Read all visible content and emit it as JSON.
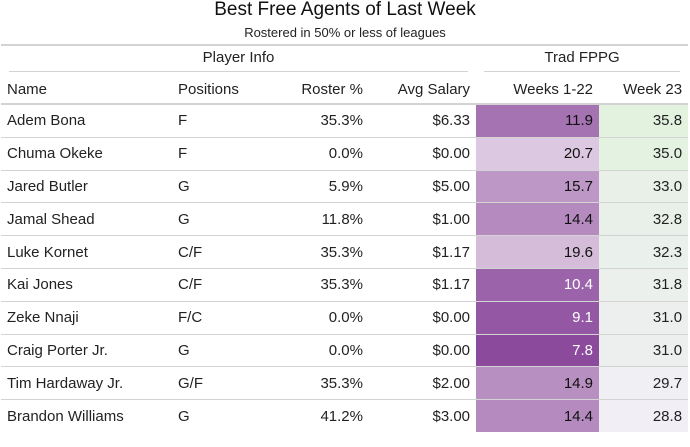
{
  "chart_data": {
    "type": "table",
    "title": "Best Free Agents of Last Week",
    "subtitle": "Rostered in 50% or less of leagues",
    "spanners": [
      "Player Info",
      "Trad FPPG"
    ],
    "columns": [
      "Name",
      "Positions",
      "Roster %",
      "Avg Salary",
      "Weeks 1-22",
      "Week 23"
    ],
    "rows": [
      {
        "name": "Adem Bona",
        "positions": "F",
        "roster": "35.3%",
        "salary": "$6.33",
        "weeks": "11.9",
        "week23": "35.8"
      },
      {
        "name": "Chuma Okeke",
        "positions": "F",
        "roster": "0.0%",
        "salary": "$0.00",
        "weeks": "20.7",
        "week23": "35.0"
      },
      {
        "name": "Jared Butler",
        "positions": "G",
        "roster": "5.9%",
        "salary": "$5.00",
        "weeks": "15.7",
        "week23": "33.0"
      },
      {
        "name": "Jamal Shead",
        "positions": "G",
        "roster": "11.8%",
        "salary": "$1.00",
        "weeks": "14.4",
        "week23": "32.8"
      },
      {
        "name": "Luke Kornet",
        "positions": "C/F",
        "roster": "35.3%",
        "salary": "$1.17",
        "weeks": "19.6",
        "week23": "32.3"
      },
      {
        "name": "Kai Jones",
        "positions": "C/F",
        "roster": "35.3%",
        "salary": "$1.17",
        "weeks": "10.4",
        "week23": "31.8"
      },
      {
        "name": "Zeke Nnaji",
        "positions": "F/C",
        "roster": "0.0%",
        "salary": "$0.00",
        "weeks": "9.1",
        "week23": "31.0"
      },
      {
        "name": "Craig Porter Jr.",
        "positions": "G",
        "roster": "0.0%",
        "salary": "$0.00",
        "weeks": "7.8",
        "week23": "31.0"
      },
      {
        "name": "Tim Hardaway Jr.",
        "positions": "G/F",
        "roster": "35.3%",
        "salary": "$2.00",
        "weeks": "14.9",
        "week23": "29.7"
      },
      {
        "name": "Brandon Williams",
        "positions": "G",
        "roster": "41.2%",
        "salary": "$3.00",
        "weeks": "14.4",
        "week23": "28.8"
      }
    ],
    "color_scales": {
      "weeks": {
        "low_color": "#8b4a9c",
        "high_color": "#dcc8e0",
        "domain": [
          7.8,
          20.7
        ]
      },
      "week23": {
        "low_color": "#f2eef6",
        "high_color": "#e2f2df",
        "domain": [
          28.8,
          35.8
        ]
      }
    }
  }
}
